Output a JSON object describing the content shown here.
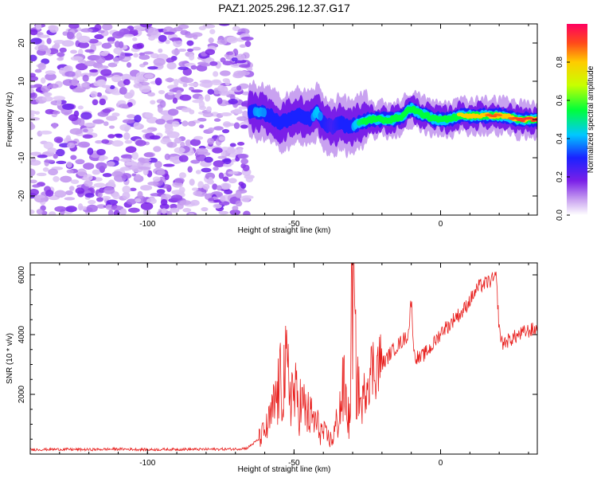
{
  "title": "PAZ1.2025.296.12.37.G17",
  "chart_data": [
    {
      "type": "heatmap",
      "name": "spectrogram",
      "title": "PAZ1.2025.296.12.37.G17",
      "xlabel": "Height of straight line (km)",
      "ylabel": "Frequency (Hz)",
      "xlim": [
        -140,
        33
      ],
      "ylim": [
        -25,
        25
      ],
      "xticks": [
        -100,
        -50,
        0
      ],
      "yticks": [
        -20,
        -10,
        0,
        10,
        20
      ],
      "noise_region_x": [
        -140,
        -65
      ],
      "signal_ridge": {
        "x": [
          -65,
          -62,
          -58,
          -55,
          -52,
          -48,
          -45,
          -42,
          -40,
          -37,
          -34,
          -31,
          -28,
          -24,
          -20,
          -16,
          -13,
          -10,
          -8,
          -5,
          -2,
          0,
          3,
          6,
          10,
          14,
          18,
          22,
          26,
          30,
          33
        ],
        "freq": [
          2,
          2,
          1,
          -1,
          0,
          1,
          0,
          2,
          -1,
          -2,
          -1,
          -2,
          -1,
          0,
          0,
          0,
          1,
          3,
          2,
          1,
          0,
          0,
          0,
          1,
          1,
          1,
          1,
          1,
          0,
          0,
          0
        ],
        "amplitude": [
          0.35,
          0.4,
          0.35,
          0.3,
          0.35,
          0.35,
          0.3,
          0.45,
          0.3,
          0.25,
          0.3,
          0.3,
          0.5,
          0.6,
          0.7,
          0.65,
          0.55,
          0.6,
          0.55,
          0.6,
          0.55,
          0.6,
          0.7,
          0.75,
          0.8,
          0.85,
          0.9,
          0.85,
          0.9,
          0.95,
          0.95
        ]
      },
      "colorbar": {
        "label": "Normalized spectral amplitude",
        "range": [
          0,
          1
        ],
        "ticks": [
          "0.0",
          "0.2",
          "0.4",
          "0.6",
          "0.8"
        ]
      }
    },
    {
      "type": "line",
      "name": "snr",
      "xlabel": "Height of straight line (km)",
      "ylabel": "SNR (10 * v/v)",
      "xlim": [
        -140,
        33
      ],
      "ylim": [
        0,
        6400
      ],
      "xticks": [
        -100,
        -50,
        0
      ],
      "yticks": [
        2000,
        4000,
        6000
      ],
      "series": [
        {
          "name": "SNR",
          "color": "#e8211f",
          "x": [
            -140,
            -130,
            -120,
            -110,
            -100,
            -90,
            -80,
            -70,
            -66,
            -62,
            -59,
            -57,
            -55,
            -53,
            -51,
            -49,
            -47,
            -45,
            -43,
            -41,
            -39,
            -37,
            -35,
            -33,
            -31,
            -30,
            -29,
            -27,
            -25,
            -23,
            -21,
            -19,
            -17,
            -15,
            -13,
            -11,
            -10,
            -9,
            -7,
            -5,
            -3,
            -1,
            1,
            3,
            5,
            7,
            9,
            11,
            13,
            15,
            17,
            19,
            20,
            21,
            23,
            25,
            27,
            29,
            31,
            33
          ],
          "y": [
            150,
            160,
            150,
            170,
            150,
            160,
            160,
            170,
            200,
            500,
            900,
            1500,
            2200,
            2700,
            2200,
            1800,
            1600,
            1300,
            1100,
            800,
            600,
            450,
            1200,
            2200,
            1000,
            6400,
            3000,
            1500,
            2600,
            2900,
            3000,
            3100,
            3400,
            3600,
            3800,
            4000,
            5200,
            3300,
            3200,
            3400,
            3600,
            3900,
            4200,
            4300,
            4600,
            4700,
            5000,
            5300,
            5600,
            5700,
            5800,
            5900,
            4200,
            3700,
            3800,
            3900,
            4000,
            4100,
            4150,
            4200
          ]
        }
      ]
    }
  ]
}
